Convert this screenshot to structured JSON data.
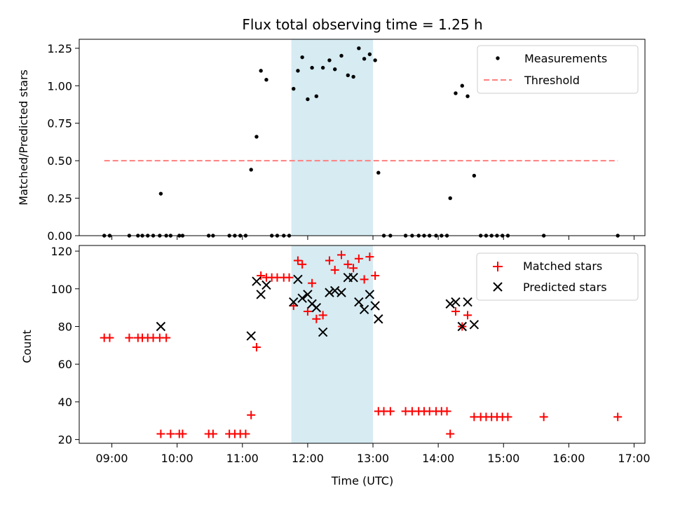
{
  "chart_data": [
    {
      "type": "scatter",
      "title": "Flux total observing time = 1.25 h",
      "xlabel": "",
      "ylabel": "Matched/Predicted stars",
      "xlim": [
        "08:30",
        "17:10"
      ],
      "ylim": [
        0,
        1.31
      ],
      "yticks": [
        "0.00",
        "0.25",
        "0.50",
        "0.75",
        "1.00",
        "1.25"
      ],
      "highlight_span": [
        "11:45",
        "13:00"
      ],
      "legend_position": "top-right",
      "legend": [
        "Measurements",
        "Threshold"
      ],
      "colors": {
        "measurements": "#000000",
        "threshold": "#ff7f7f",
        "span": "#add8e6"
      },
      "threshold": {
        "value": 0.5,
        "x": [
          "08:53",
          "16:45"
        ]
      },
      "series": [
        {
          "name": "Measurements",
          "points": [
            [
              "08:53",
              0.0
            ],
            [
              "08:58",
              0.0
            ],
            [
              "09:16",
              0.0
            ],
            [
              "09:24",
              0.0
            ],
            [
              "09:28",
              0.0
            ],
            [
              "09:33",
              0.0
            ],
            [
              "09:38",
              0.0
            ],
            [
              "09:44",
              0.0
            ],
            [
              "09:50",
              0.0
            ],
            [
              "09:54",
              0.0
            ],
            [
              "09:45",
              0.28
            ],
            [
              "10:02",
              0.0
            ],
            [
              "10:05",
              0.0
            ],
            [
              "10:29",
              0.0
            ],
            [
              "10:33",
              0.0
            ],
            [
              "10:48",
              0.0
            ],
            [
              "10:53",
              0.0
            ],
            [
              "10:58",
              0.0
            ],
            [
              "11:03",
              0.0
            ],
            [
              "11:08",
              0.44
            ],
            [
              "11:13",
              0.66
            ],
            [
              "11:17",
              1.1
            ],
            [
              "11:22",
              1.04
            ],
            [
              "11:27",
              0.0
            ],
            [
              "11:32",
              0.0
            ],
            [
              "11:38",
              0.0
            ],
            [
              "11:43",
              0.0
            ],
            [
              "11:47",
              0.98
            ],
            [
              "11:51",
              1.1
            ],
            [
              "11:55",
              1.19
            ],
            [
              "12:00",
              0.91
            ],
            [
              "12:04",
              1.12
            ],
            [
              "12:08",
              0.93
            ],
            [
              "12:14",
              1.12
            ],
            [
              "12:20",
              1.17
            ],
            [
              "12:25",
              1.11
            ],
            [
              "12:31",
              1.2
            ],
            [
              "12:37",
              1.07
            ],
            [
              "12:42",
              1.06
            ],
            [
              "12:47",
              1.25
            ],
            [
              "12:52",
              1.18
            ],
            [
              "12:57",
              1.21
            ],
            [
              "13:02",
              1.17
            ],
            [
              "13:05",
              0.42
            ],
            [
              "13:10",
              0.0
            ],
            [
              "13:16",
              0.0
            ],
            [
              "13:30",
              0.0
            ],
            [
              "13:36",
              0.0
            ],
            [
              "13:42",
              0.0
            ],
            [
              "13:47",
              0.0
            ],
            [
              "13:52",
              0.0
            ],
            [
              "13:58",
              0.0
            ],
            [
              "14:03",
              0.0
            ],
            [
              "14:08",
              0.0
            ],
            [
              "14:11",
              0.25
            ],
            [
              "14:16",
              0.95
            ],
            [
              "14:22",
              1.0
            ],
            [
              "14:27",
              0.93
            ],
            [
              "14:33",
              0.4
            ],
            [
              "14:39",
              0.0
            ],
            [
              "14:44",
              0.0
            ],
            [
              "14:49",
              0.0
            ],
            [
              "14:54",
              0.0
            ],
            [
              "14:59",
              0.0
            ],
            [
              "15:04",
              0.0
            ],
            [
              "15:37",
              0.0
            ],
            [
              "16:45",
              0.0
            ]
          ]
        }
      ]
    },
    {
      "type": "scatter",
      "title": "",
      "xlabel": "Time (UTC)",
      "ylabel": "Count",
      "xlim": [
        "08:30",
        "17:10"
      ],
      "ylim": [
        18,
        123
      ],
      "yticks": [
        "20",
        "40",
        "60",
        "80",
        "100",
        "120"
      ],
      "xticks": [
        "09:00",
        "10:00",
        "11:00",
        "12:00",
        "13:00",
        "14:00",
        "15:00",
        "16:00",
        "17:00"
      ],
      "highlight_span": [
        "11:45",
        "13:00"
      ],
      "legend_position": "top-right",
      "legend": [
        "Matched stars",
        "Predicted stars"
      ],
      "colors": {
        "matched": "#ff0000",
        "predicted": "#000000",
        "span": "#add8e6"
      },
      "series": [
        {
          "name": "Matched stars",
          "points": [
            [
              "08:53",
              74
            ],
            [
              "08:58",
              74
            ],
            [
              "09:16",
              74
            ],
            [
              "09:24",
              74
            ],
            [
              "09:28",
              74
            ],
            [
              "09:33",
              74
            ],
            [
              "09:38",
              74
            ],
            [
              "09:44",
              74
            ],
            [
              "09:50",
              74
            ],
            [
              "09:45",
              23
            ],
            [
              "09:54",
              23
            ],
            [
              "10:02",
              23
            ],
            [
              "10:05",
              23
            ],
            [
              "10:29",
              23
            ],
            [
              "10:33",
              23
            ],
            [
              "10:48",
              23
            ],
            [
              "10:53",
              23
            ],
            [
              "10:58",
              23
            ],
            [
              "11:03",
              23
            ],
            [
              "11:08",
              33
            ],
            [
              "11:13",
              69
            ],
            [
              "11:17",
              107
            ],
            [
              "11:22",
              106
            ],
            [
              "11:27",
              106
            ],
            [
              "11:32",
              106
            ],
            [
              "11:38",
              106
            ],
            [
              "11:43",
              106
            ],
            [
              "11:47",
              91
            ],
            [
              "11:51",
              115
            ],
            [
              "11:55",
              113
            ],
            [
              "12:00",
              88
            ],
            [
              "12:04",
              103
            ],
            [
              "12:08",
              84
            ],
            [
              "12:14",
              86
            ],
            [
              "12:20",
              115
            ],
            [
              "12:25",
              110
            ],
            [
              "12:31",
              118
            ],
            [
              "12:37",
              113
            ],
            [
              "12:42",
              111
            ],
            [
              "12:47",
              116
            ],
            [
              "12:52",
              105
            ],
            [
              "12:57",
              117
            ],
            [
              "13:02",
              107
            ],
            [
              "13:05",
              35
            ],
            [
              "13:10",
              35
            ],
            [
              "13:16",
              35
            ],
            [
              "13:30",
              35
            ],
            [
              "13:36",
              35
            ],
            [
              "13:42",
              35
            ],
            [
              "13:47",
              35
            ],
            [
              "13:52",
              35
            ],
            [
              "13:58",
              35
            ],
            [
              "14:03",
              35
            ],
            [
              "14:08",
              35
            ],
            [
              "14:11",
              23
            ],
            [
              "14:16",
              88
            ],
            [
              "14:22",
              80
            ],
            [
              "14:27",
              86
            ],
            [
              "14:33",
              32
            ],
            [
              "14:39",
              32
            ],
            [
              "14:44",
              32
            ],
            [
              "14:49",
              32
            ],
            [
              "14:54",
              32
            ],
            [
              "14:59",
              32
            ],
            [
              "15:04",
              32
            ],
            [
              "15:37",
              32
            ],
            [
              "16:45",
              32
            ]
          ]
        },
        {
          "name": "Predicted stars",
          "points": [
            [
              "09:45",
              80
            ],
            [
              "11:08",
              75
            ],
            [
              "11:13",
              104
            ],
            [
              "11:17",
              97
            ],
            [
              "11:22",
              102
            ],
            [
              "11:47",
              93
            ],
            [
              "11:51",
              105
            ],
            [
              "11:55",
              95
            ],
            [
              "12:00",
              97
            ],
            [
              "12:04",
              92
            ],
            [
              "12:08",
              90
            ],
            [
              "12:14",
              77
            ],
            [
              "12:20",
              98
            ],
            [
              "12:25",
              99
            ],
            [
              "12:31",
              98
            ],
            [
              "12:37",
              106
            ],
            [
              "12:42",
              106
            ],
            [
              "12:47",
              93
            ],
            [
              "12:52",
              89
            ],
            [
              "12:57",
              97
            ],
            [
              "13:02",
              91
            ],
            [
              "13:05",
              84
            ],
            [
              "14:11",
              92
            ],
            [
              "14:16",
              93
            ],
            [
              "14:22",
              80
            ],
            [
              "14:27",
              93
            ],
            [
              "14:33",
              81
            ]
          ]
        }
      ]
    }
  ]
}
